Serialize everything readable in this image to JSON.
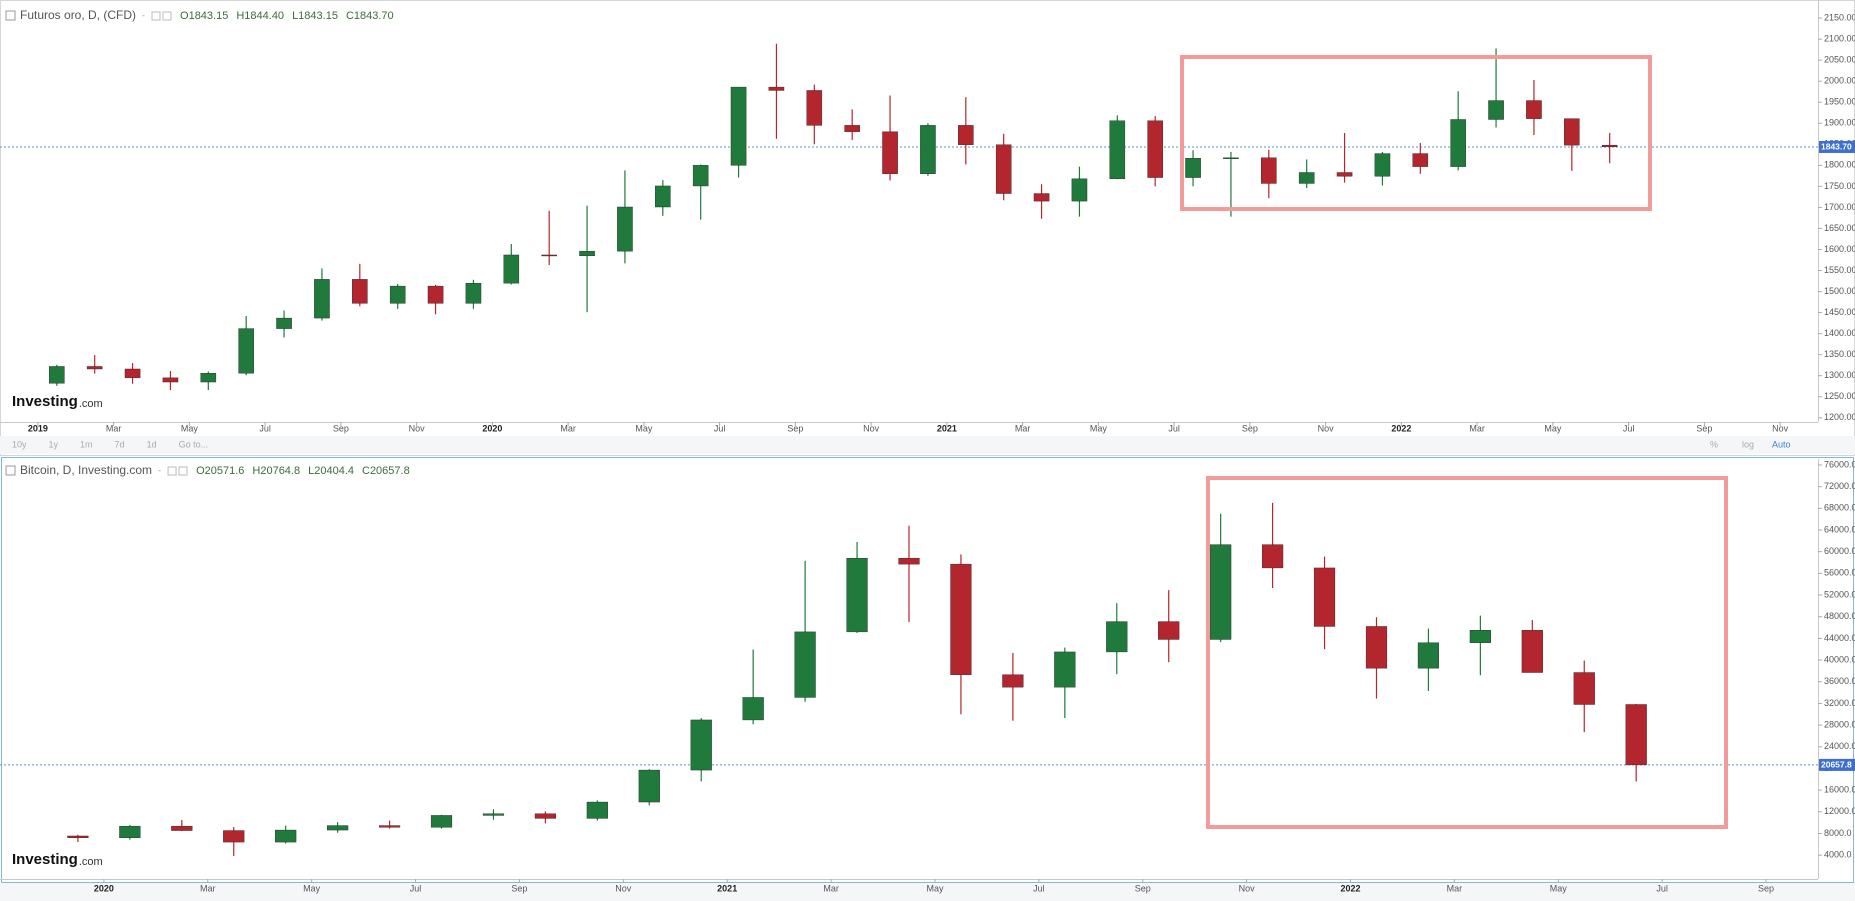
{
  "chart_data": [
    {
      "type": "candlestick",
      "title": "Futuros oro, D, (CFD)",
      "ohlc_legend": [
        "O1843.15",
        "H1844.40",
        "L1843.15",
        "C1843.70"
      ],
      "logo": {
        "main": "Investing",
        "suffix": ".com"
      },
      "toolbar": {
        "ranges": [
          "10y",
          "1y",
          "1m",
          "7d",
          "1d",
          "Go to..."
        ],
        "options": [
          "%",
          "log",
          "Auto"
        ]
      },
      "up_color": "#1f7a3c",
      "down_color": "#b3262e",
      "grid": false,
      "last_price": {
        "value": 1843.7,
        "label": "1843.70"
      },
      "xlim": [
        "2018-12",
        "2022-12"
      ],
      "xticks": [
        {
          "value": "2019-01",
          "label": "2019"
        },
        {
          "value": "2019-03",
          "label": "Mar"
        },
        {
          "value": "2019-05",
          "label": "May"
        },
        {
          "value": "2019-07",
          "label": "Jul"
        },
        {
          "value": "2019-09",
          "label": "Sep"
        },
        {
          "value": "2019-11",
          "label": "Nov"
        },
        {
          "value": "2020-01",
          "label": "2020"
        },
        {
          "value": "2020-03",
          "label": "Mar"
        },
        {
          "value": "2020-05",
          "label": "May"
        },
        {
          "value": "2020-07",
          "label": "Jul"
        },
        {
          "value": "2020-09",
          "label": "Sep"
        },
        {
          "value": "2020-11",
          "label": "Nov"
        },
        {
          "value": "2021-01",
          "label": "2021"
        },
        {
          "value": "2021-03",
          "label": "Mar"
        },
        {
          "value": "2021-05",
          "label": "May"
        },
        {
          "value": "2021-07",
          "label": "Jul"
        },
        {
          "value": "2021-09",
          "label": "Sep"
        },
        {
          "value": "2021-11",
          "label": "Nov"
        },
        {
          "value": "2022-01",
          "label": "2022"
        },
        {
          "value": "2022-03",
          "label": "Mar"
        },
        {
          "value": "2022-05",
          "label": "May"
        },
        {
          "value": "2022-07",
          "label": "Jul"
        },
        {
          "value": "2022-09",
          "label": "Sep"
        },
        {
          "value": "2022-11",
          "label": "Nov"
        }
      ],
      "ylim": [
        1190,
        2193
      ],
      "yticks": [
        {
          "value": 1200,
          "label": "1200.00"
        },
        {
          "value": 1250,
          "label": "1250.00"
        },
        {
          "value": 1300,
          "label": "1300.00"
        },
        {
          "value": 1350,
          "label": "1350.00"
        },
        {
          "value": 1400,
          "label": "1400.00"
        },
        {
          "value": 1450,
          "label": "1450.00"
        },
        {
          "value": 1500,
          "label": "1500.00"
        },
        {
          "value": 1550,
          "label": "1550.00"
        },
        {
          "value": 1600,
          "label": "1600.00"
        },
        {
          "value": 1650,
          "label": "1650.00"
        },
        {
          "value": 1700,
          "label": "1700.00"
        },
        {
          "value": 1750,
          "label": "1750.00"
        },
        {
          "value": 1800,
          "label": "1800.00"
        },
        {
          "value": 1850,
          "label": "1850.00"
        },
        {
          "value": 1900,
          "label": "1900.00"
        },
        {
          "value": 1950,
          "label": "1950.00"
        },
        {
          "value": 2000,
          "label": "2000.00"
        },
        {
          "value": 2050,
          "label": "2050.00"
        },
        {
          "value": 2100,
          "label": "2100.00"
        },
        {
          "value": 2150,
          "label": "2150.00"
        }
      ],
      "x": [
        "2019-01",
        "2019-02",
        "2019-03",
        "2019-04",
        "2019-05",
        "2019-06",
        "2019-07",
        "2019-08",
        "2019-09",
        "2019-10",
        "2019-11",
        "2019-12",
        "2020-01",
        "2020-02",
        "2020-03",
        "2020-04",
        "2020-05",
        "2020-06",
        "2020-07",
        "2020-08",
        "2020-09",
        "2020-10",
        "2020-11",
        "2020-12",
        "2021-01",
        "2021-02",
        "2021-03",
        "2021-04",
        "2021-05",
        "2021-06",
        "2021-07",
        "2021-08",
        "2021-09",
        "2021-10",
        "2021-11",
        "2021-12",
        "2022-01",
        "2022-02",
        "2022-03",
        "2022-04",
        "2022-05",
        "2022-06"
      ],
      "open": [
        1282,
        1322,
        1316,
        1295,
        1285,
        1306,
        1412,
        1437,
        1529,
        1472,
        1513,
        1472,
        1520,
        1587,
        1585,
        1596,
        1701,
        1751,
        1800,
        1986,
        1978,
        1895,
        1880,
        1780,
        1895,
        1849,
        1733,
        1715,
        1768,
        1906,
        1771,
        1817,
        1818,
        1757,
        1783,
        1774,
        1828,
        1797,
        1909,
        1954,
        1911,
        1848
      ],
      "high": [
        1326,
        1349,
        1330,
        1311,
        1310,
        1442,
        1455,
        1555,
        1566,
        1518,
        1516,
        1528,
        1613,
        1692,
        1704,
        1788,
        1765,
        1802,
        1985,
        2089,
        1992,
        1933,
        1966,
        1900,
        1962,
        1875,
        1755,
        1797,
        1919,
        1917,
        1836,
        1832,
        1837,
        1814,
        1877,
        1832,
        1853,
        1976,
        2078,
        2003,
        1911,
        1877
      ],
      "low": [
        1276,
        1305,
        1281,
        1266,
        1266,
        1301,
        1391,
        1431,
        1465,
        1459,
        1446,
        1459,
        1517,
        1563,
        1451,
        1567,
        1680,
        1671,
        1771,
        1863,
        1850,
        1860,
        1764,
        1775,
        1802,
        1717,
        1673,
        1678,
        1767,
        1750,
        1750,
        1678,
        1722,
        1746,
        1759,
        1752,
        1780,
        1788,
        1890,
        1872,
        1787,
        1805
      ],
      "close": [
        1322,
        1316,
        1295,
        1285,
        1306,
        1412,
        1437,
        1529,
        1472,
        1513,
        1472,
        1520,
        1587,
        1585,
        1596,
        1701,
        1751,
        1800,
        1986,
        1978,
        1895,
        1880,
        1780,
        1895,
        1849,
        1733,
        1715,
        1768,
        1906,
        1771,
        1817,
        1818,
        1757,
        1783,
        1774,
        1828,
        1797,
        1909,
        1954,
        1911,
        1848,
        1844
      ]
    },
    {
      "type": "candlestick",
      "title": "Bitcoin, D, Investing.com",
      "ohlc_legend": [
        "O20571.6",
        "H20764.8",
        "L20404.4",
        "C20657.8"
      ],
      "logo": {
        "main": "Investing",
        "suffix": ".com"
      },
      "up_color": "#1f7a3c",
      "down_color": "#b3262e",
      "grid": false,
      "last_price": {
        "value": 20657.8,
        "label": "20657.8"
      },
      "xlim": [
        "2019-11",
        "2022-10"
      ],
      "xticks": [
        {
          "value": "2020-01",
          "label": "2020"
        },
        {
          "value": "2020-03",
          "label": "Mar"
        },
        {
          "value": "2020-05",
          "label": "May"
        },
        {
          "value": "2020-07",
          "label": "Jul"
        },
        {
          "value": "2020-09",
          "label": "Sep"
        },
        {
          "value": "2020-11",
          "label": "Nov"
        },
        {
          "value": "2021-01",
          "label": "2021"
        },
        {
          "value": "2021-03",
          "label": "Mar"
        },
        {
          "value": "2021-05",
          "label": "May"
        },
        {
          "value": "2021-07",
          "label": "Jul"
        },
        {
          "value": "2021-09",
          "label": "Sep"
        },
        {
          "value": "2021-11",
          "label": "Nov"
        },
        {
          "value": "2022-01",
          "label": "2022"
        },
        {
          "value": "2022-03",
          "label": "Mar"
        },
        {
          "value": "2022-05",
          "label": "May"
        },
        {
          "value": "2022-07",
          "label": "Jul"
        },
        {
          "value": "2022-09",
          "label": "Sep"
        }
      ],
      "ylim": [
        -400,
        77100
      ],
      "yticks": [
        {
          "value": 4000,
          "label": "4000.0"
        },
        {
          "value": 8000,
          "label": "8000.0"
        },
        {
          "value": 12000,
          "label": "12000.0"
        },
        {
          "value": 16000,
          "label": "16000.0"
        },
        {
          "value": 20000,
          "label": "20000.0"
        },
        {
          "value": 24000,
          "label": "24000.0"
        },
        {
          "value": 28000,
          "label": "28000.0"
        },
        {
          "value": 32000,
          "label": "32000.0"
        },
        {
          "value": 36000,
          "label": "36000.0"
        },
        {
          "value": 40000,
          "label": "40000.0"
        },
        {
          "value": 44000,
          "label": "44000.0"
        },
        {
          "value": 48000,
          "label": "48000.0"
        },
        {
          "value": 52000,
          "label": "52000.0"
        },
        {
          "value": 56000,
          "label": "56000.0"
        },
        {
          "value": 60000,
          "label": "60000.0"
        },
        {
          "value": 64000,
          "label": "64000.0"
        },
        {
          "value": 68000,
          "label": "68000.0"
        },
        {
          "value": 72000,
          "label": "72000.0"
        },
        {
          "value": 76000,
          "label": "76000.0"
        }
      ],
      "x": [
        "2019-12",
        "2020-01",
        "2020-02",
        "2020-03",
        "2020-04",
        "2020-05",
        "2020-06",
        "2020-07",
        "2020-08",
        "2020-09",
        "2020-10",
        "2020-11",
        "2020-12",
        "2021-01",
        "2021-02",
        "2021-03",
        "2021-04",
        "2021-05",
        "2021-06",
        "2021-07",
        "2021-08",
        "2021-09",
        "2021-10",
        "2021-11",
        "2021-12",
        "2022-01",
        "2022-02",
        "2022-03",
        "2022-04",
        "2022-05",
        "2022-06"
      ],
      "open": [
        7540,
        7200,
        9350,
        8540,
        6410,
        8630,
        9460,
        9140,
        11330,
        11650,
        10780,
        13800,
        19700,
        28950,
        33100,
        45200,
        58800,
        57700,
        37300,
        35000,
        41500,
        47100,
        43800,
        61300,
        57000,
        46200,
        38500,
        43200,
        45500,
        37700,
        31800
      ],
      "high": [
        7750,
        9580,
        10500,
        9190,
        9460,
        10080,
        10380,
        11440,
        12470,
        12090,
        14100,
        19860,
        29300,
        41950,
        58330,
        61800,
        64800,
        59500,
        41300,
        42300,
        50500,
        52900,
        67000,
        69000,
        59100,
        47900,
        45800,
        48200,
        47400,
        39900,
        31900
      ],
      "low": [
        6430,
        6860,
        8450,
        3850,
        6160,
        8130,
        8900,
        8900,
        10540,
        9870,
        10370,
        13200,
        17600,
        28150,
        32300,
        45000,
        47000,
        30000,
        28800,
        29300,
        37400,
        39600,
        43300,
        53300,
        42000,
        32900,
        34300,
        37200,
        37700,
        26700,
        17600
      ],
      "close": [
        7200,
        9350,
        8540,
        6410,
        8630,
        9460,
        9140,
        11330,
        11650,
        10780,
        13800,
        19700,
        28950,
        33100,
        45200,
        58800,
        57700,
        37300,
        35000,
        41500,
        47100,
        43800,
        61300,
        57000,
        46200,
        38500,
        43200,
        45500,
        37700,
        31800,
        20657.8
      ]
    }
  ]
}
